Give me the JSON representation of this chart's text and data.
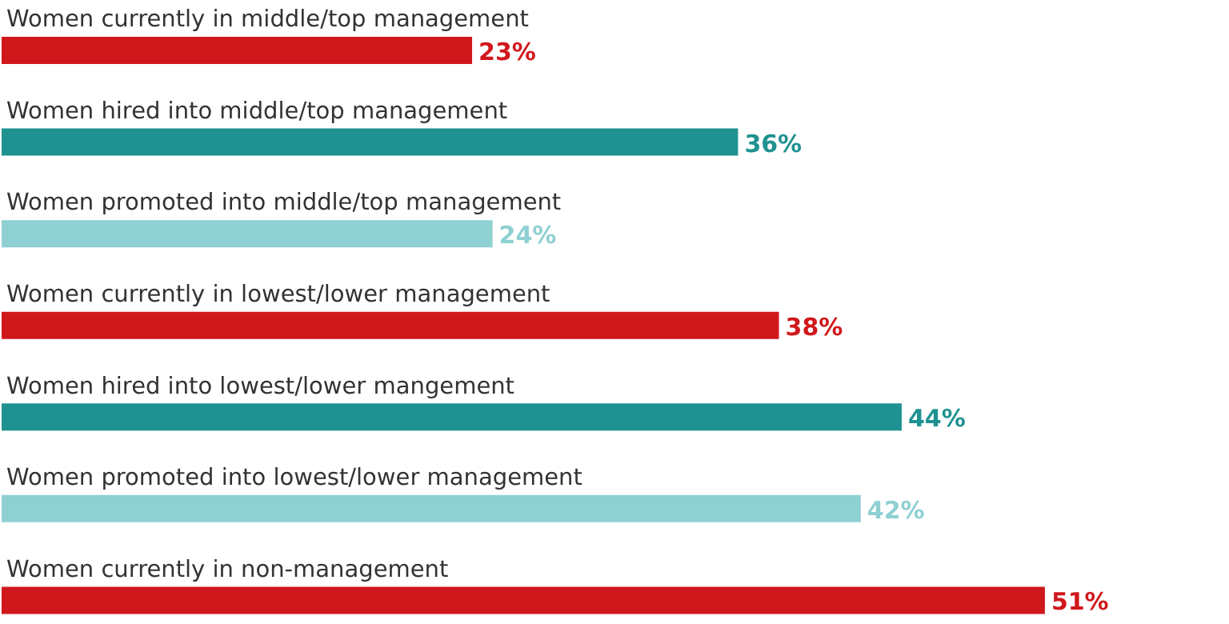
{
  "chart_data": {
    "type": "bar",
    "orientation": "horizontal",
    "categories": [
      "Women currently in middle/top management",
      "Women hired into middle/top management",
      "Women promoted into middle/top management",
      "Women currently in lowest/lower management",
      "Women hired into lowest/lower mangement",
      "Women promoted into lowest/lower management",
      "Women currently in non-management"
    ],
    "values": [
      23,
      36,
      24,
      38,
      44,
      42,
      51
    ],
    "colors": [
      "#d0181c",
      "#1f9191",
      "#8fd0d2",
      "#d0181c",
      "#1f9191",
      "#8fd0d2",
      "#d0181c"
    ],
    "value_labels": [
      "23%",
      "36%",
      "24%",
      "38%",
      "44%",
      "42%",
      "51%"
    ],
    "xlim": [
      0,
      60
    ],
    "tick_labels": false,
    "grid": false,
    "legend": false
  }
}
